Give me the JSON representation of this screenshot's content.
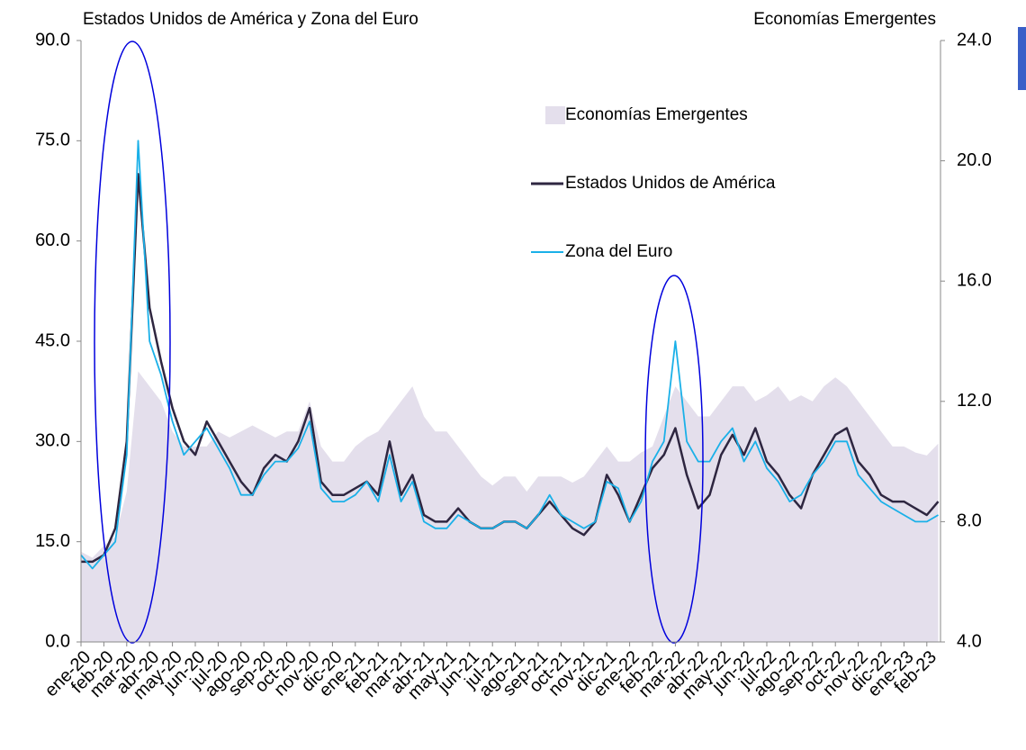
{
  "chart_data": {
    "type": "line",
    "y_title": "Estados Unidos de América y Zona del Euro",
    "y2_title": "Economías Emergentes",
    "categories": [
      "ene-20",
      null,
      "feb-20",
      null,
      "mar-20",
      null,
      "abr-20",
      null,
      "may-20",
      null,
      "jun-20",
      null,
      "jul-20",
      null,
      "ago-20",
      null,
      "sep-20",
      null,
      "oct-20",
      null,
      "nov-20",
      null,
      "dic-20",
      null,
      "ene-21",
      null,
      "feb-21",
      null,
      "mar-21",
      null,
      "abr-21",
      null,
      "may-21",
      null,
      "jun-21",
      null,
      "jul-21",
      null,
      "ago-21",
      null,
      "sep-21",
      null,
      "oct-21",
      null,
      "nov-21",
      null,
      "dic-21",
      null,
      "ene-22",
      null,
      "feb-22",
      null,
      "mar-22",
      null,
      "abr-22",
      null,
      "may-22",
      null,
      "jun-22",
      null,
      "jul-22",
      null,
      "ago-22",
      null,
      "sep-22",
      null,
      "oct-22",
      null,
      "nov-22",
      null,
      "dic-22",
      null,
      "ene-23",
      null,
      "feb-23",
      null
    ],
    "series": [
      {
        "name": "Economías Emergentes",
        "color": "#e4dfec",
        "kind": "area",
        "axis": "y2",
        "values": [
          7,
          6.8,
          7.2,
          7.5,
          9,
          13,
          12.5,
          12,
          11,
          10.5,
          10.5,
          10.5,
          11,
          10.8,
          11,
          11.2,
          11,
          10.8,
          11,
          11,
          12,
          10.5,
          10,
          10,
          10.5,
          10.8,
          11,
          11.5,
          12,
          12.5,
          11.5,
          11,
          11,
          10.5,
          10,
          9.5,
          9.2,
          9.5,
          9.5,
          9,
          9.5,
          9.5,
          9.5,
          9.3,
          9.5,
          10,
          10.5,
          10,
          10,
          10.3,
          10.5,
          11.5,
          12.5,
          12,
          11.5,
          11.5,
          12,
          12.5,
          12.5,
          12,
          12.2,
          12.5,
          12,
          12.2,
          12,
          12.5,
          12.8,
          12.5,
          12,
          11.5,
          11,
          10.5,
          10.5,
          10.3,
          10.2,
          10.6
        ]
      },
      {
        "name": "Estados Unidos de América",
        "color": "#2e2640",
        "kind": "line",
        "values": [
          12,
          12,
          13,
          17,
          30,
          70,
          50,
          42,
          35,
          30,
          28,
          33,
          30,
          27,
          24,
          22,
          26,
          28,
          27,
          30,
          35,
          24,
          22,
          22,
          23,
          24,
          22,
          30,
          22,
          25,
          19,
          18,
          18,
          20,
          18,
          17,
          17,
          18,
          18,
          17,
          19,
          21,
          19,
          17,
          16,
          18,
          25,
          22,
          18,
          22,
          26,
          28,
          32,
          25,
          20,
          22,
          28,
          31,
          28,
          32,
          27,
          25,
          22,
          20,
          25,
          28,
          31,
          32,
          27,
          25,
          22,
          21,
          21,
          20,
          19,
          21
        ]
      },
      {
        "name": "Zona del Euro",
        "color": "#1ab0e8",
        "kind": "line",
        "values": [
          13,
          11,
          13,
          15,
          28,
          75,
          45,
          40,
          33,
          28,
          30,
          32,
          29,
          26,
          22,
          22,
          25,
          27,
          27,
          29,
          33,
          23,
          21,
          21,
          22,
          24,
          21,
          28,
          21,
          24,
          18,
          17,
          17,
          19,
          18,
          17,
          17,
          18,
          18,
          17,
          19,
          22,
          19,
          18,
          17,
          18,
          24,
          23,
          18,
          21,
          27,
          30,
          45,
          30,
          27,
          27,
          30,
          32,
          27,
          30,
          26,
          24,
          21,
          22,
          25,
          27,
          30,
          30,
          25,
          23,
          21,
          20,
          19,
          18,
          18,
          19
        ]
      }
    ],
    "ylim": [
      0,
      90
    ],
    "yticks": [
      {
        "value": 0,
        "label": "0.0"
      },
      {
        "value": 15,
        "label": "15.0"
      },
      {
        "value": 30,
        "label": "30.0"
      },
      {
        "value": 45,
        "label": "45.0"
      },
      {
        "value": 60,
        "label": "60.0"
      },
      {
        "value": 75,
        "label": "75.0"
      },
      {
        "value": 90,
        "label": "90.0"
      }
    ],
    "y2lim": [
      4,
      24
    ],
    "y2ticks": [
      {
        "value": 4,
        "label": "4.0"
      },
      {
        "value": 8,
        "label": "8.0"
      },
      {
        "value": 12,
        "label": "12.0"
      },
      {
        "value": 16,
        "label": "16.0"
      },
      {
        "value": 20,
        "label": "20.0"
      },
      {
        "value": 24,
        "label": "24.0"
      }
    ],
    "grid": false
  }
}
